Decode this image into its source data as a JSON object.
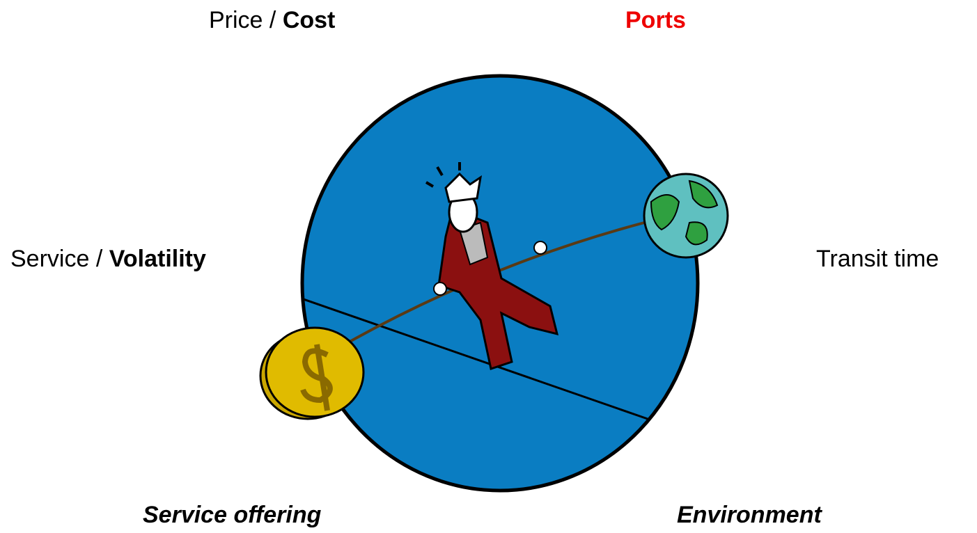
{
  "labels": {
    "top_left": {
      "plain": "Price /",
      "bold": "Cost"
    },
    "top_right": {
      "bold": "Ports"
    },
    "middle_left": {
      "plain": "Service /",
      "bold": "Volatility"
    },
    "middle_right": {
      "plain": "Transit time"
    },
    "bottom_left": {
      "bold_italic": "Service offering"
    },
    "bottom_right": {
      "bold_italic": "Environment"
    }
  }
}
